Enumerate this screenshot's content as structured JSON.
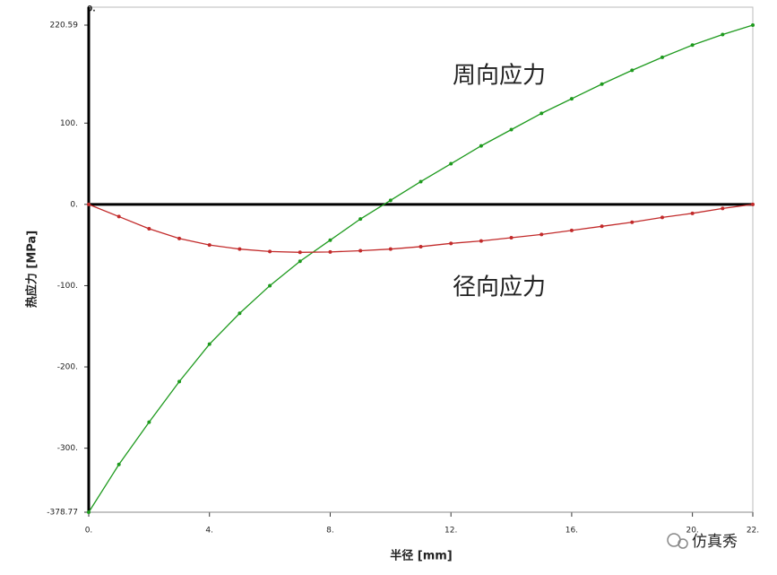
{
  "chart_data": {
    "type": "line",
    "corner_label": "0.",
    "x_label": "半径 [mm]",
    "y_label": "热应力 [MPa]",
    "annotations": [
      "周向应力",
      "径向应力"
    ],
    "watermark": "仿真秀",
    "x": [
      0,
      1,
      2,
      3,
      4,
      5,
      6,
      7,
      8,
      9,
      10,
      11,
      12,
      13,
      14,
      15,
      16,
      17,
      18,
      19,
      20,
      21,
      22
    ],
    "series": [
      {
        "name": "周向应力",
        "color": "#1e9a1e",
        "values": [
          -378.77,
          -320,
          -268,
          -218,
          -172,
          -134,
          -100,
          -70,
          -44,
          -18,
          5,
          28,
          50,
          72,
          92,
          112,
          130,
          148,
          165,
          181,
          196,
          209,
          220.59
        ]
      },
      {
        "name": "径向应力",
        "color": "#c22a2a",
        "values": [
          0,
          -15,
          -30,
          -42,
          -50,
          -55,
          -58,
          -59,
          -58.5,
          -57,
          -55,
          -52,
          -48,
          -45,
          -41,
          -37,
          -32,
          -27,
          -22,
          -16,
          -11,
          -5,
          0
        ]
      }
    ],
    "xlim": [
      0,
      22
    ],
    "xticks": [
      {
        "value": 0,
        "label": "0."
      },
      {
        "value": 4,
        "label": "4."
      },
      {
        "value": 8,
        "label": "8."
      },
      {
        "value": 12,
        "label": "12."
      },
      {
        "value": 16,
        "label": "16."
      },
      {
        "value": 20,
        "label": "20."
      },
      {
        "value": 22,
        "label": "22."
      }
    ],
    "ylim": [
      -378.77,
      220.59
    ],
    "yticks": [
      220.59,
      {
        "value": 100,
        "label": "100."
      },
      {
        "value": 0,
        "label": "0."
      },
      {
        "value": -100,
        "label": "-100."
      },
      {
        "value": -200,
        "label": "-200."
      },
      {
        "value": -300,
        "label": "-300."
      },
      -378.77
    ]
  }
}
